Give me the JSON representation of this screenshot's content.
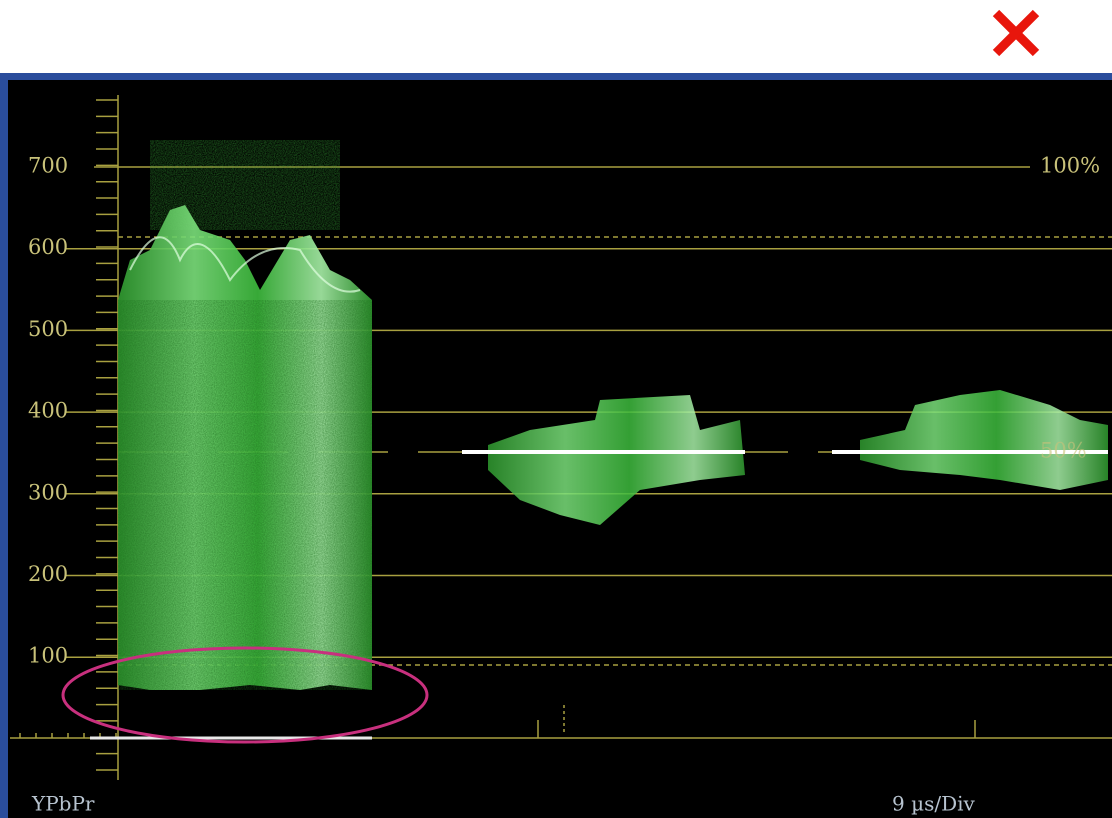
{
  "scale": {
    "labels": [
      "700",
      "600",
      "500",
      "400",
      "300",
      "200",
      "100"
    ]
  },
  "markers": {
    "top": "100%",
    "mid": "50%"
  },
  "footer": {
    "format": "YPbPr",
    "timebase": "9 µs/Div"
  }
}
